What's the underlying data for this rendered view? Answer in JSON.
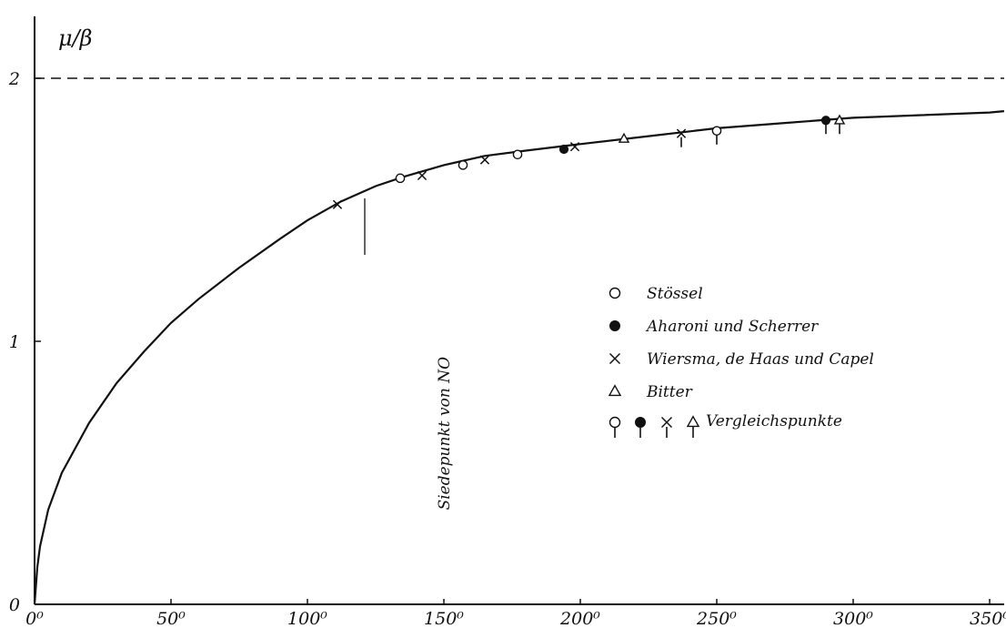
{
  "chart_data": {
    "type": "line",
    "ylabel": "μ/β",
    "xunit": "K",
    "xlim": [
      0,
      365
    ],
    "ylim": [
      0,
      2.15
    ],
    "x_ticks": [
      {
        "value": 0,
        "label": "0⁰"
      },
      {
        "value": 50,
        "label": "50⁰"
      },
      {
        "value": 100,
        "label": "100⁰"
      },
      {
        "value": 150,
        "label": "150⁰"
      },
      {
        "value": 200,
        "label": "200⁰"
      },
      {
        "value": 250,
        "label": "250⁰"
      },
      {
        "value": 300,
        "label": "300⁰"
      },
      {
        "value": 350,
        "label": "350⁰"
      }
    ],
    "y_ticks": [
      {
        "value": 0,
        "label": "0"
      },
      {
        "value": 1,
        "label": "1"
      },
      {
        "value": 2,
        "label": "2"
      }
    ],
    "asymptote": 2,
    "curve": {
      "x": [
        0,
        1,
        2,
        5,
        10,
        20,
        30,
        40,
        50,
        60,
        75,
        90,
        100,
        112,
        125,
        135,
        150,
        165,
        180,
        200,
        225,
        250,
        275,
        300,
        325,
        350,
        365
      ],
      "y": [
        0,
        0.14,
        0.22,
        0.36,
        0.5,
        0.69,
        0.84,
        0.96,
        1.07,
        1.16,
        1.28,
        1.39,
        1.46,
        1.53,
        1.59,
        1.625,
        1.67,
        1.705,
        1.725,
        1.75,
        1.78,
        1.81,
        1.83,
        1.85,
        1.86,
        1.87,
        1.875
      ]
    },
    "series": [
      {
        "name": "Stössel",
        "marker": "open-circle",
        "points": [
          [
            134,
            1.62
          ],
          [
            157,
            1.67
          ],
          [
            177,
            1.71
          ],
          [
            250,
            1.8
          ]
        ]
      },
      {
        "name": "Aharoni und Scherrer",
        "marker": "filled-circle",
        "points": [
          [
            194,
            1.73
          ],
          [
            290,
            1.84
          ]
        ]
      },
      {
        "name": "Wiersma, de Haas und Capel",
        "marker": "cross",
        "points": [
          [
            111,
            1.52
          ],
          [
            142,
            1.63
          ],
          [
            165,
            1.69
          ],
          [
            198,
            1.74
          ],
          [
            237,
            1.79
          ]
        ]
      },
      {
        "name": "Bitter",
        "marker": "open-triangle",
        "points": [
          [
            216,
            1.77
          ],
          [
            295,
            1.84
          ]
        ]
      }
    ],
    "comparison_points": {
      "name": "Vergleichspunkte",
      "points": [
        {
          "marker": "open-circle",
          "x": 250,
          "y": 1.8
        },
        {
          "marker": "filled-circle",
          "x": 290,
          "y": 1.84
        },
        {
          "marker": "cross",
          "x": 237,
          "y": 1.79
        },
        {
          "marker": "open-triangle",
          "x": 295,
          "y": 1.84
        }
      ]
    },
    "annotation": {
      "text": "Siedepunkt von NO",
      "x": 121
    },
    "legend_placement": "center-right",
    "grid": false
  }
}
